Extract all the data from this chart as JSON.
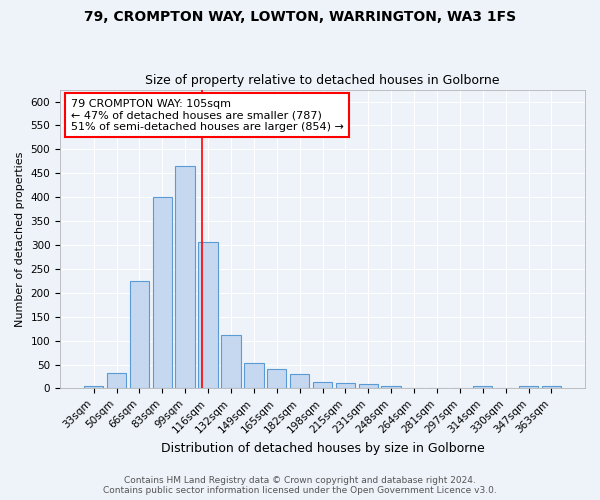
{
  "title": "79, CROMPTON WAY, LOWTON, WARRINGTON, WA3 1FS",
  "subtitle": "Size of property relative to detached houses in Golborne",
  "xlabel": "Distribution of detached houses by size in Golborne",
  "ylabel": "Number of detached properties",
  "bin_labels": [
    "33sqm",
    "50sqm",
    "66sqm",
    "83sqm",
    "99sqm",
    "116sqm",
    "132sqm",
    "149sqm",
    "165sqm",
    "182sqm",
    "198sqm",
    "215sqm",
    "231sqm",
    "248sqm",
    "264sqm",
    "281sqm",
    "297sqm",
    "314sqm",
    "330sqm",
    "347sqm",
    "363sqm"
  ],
  "bar_values": [
    5,
    32,
    225,
    400,
    465,
    307,
    111,
    53,
    40,
    30,
    14,
    11,
    10,
    5,
    0,
    0,
    0,
    5,
    0,
    5,
    5
  ],
  "bar_color": "#c5d8f0",
  "bar_edge_color": "#5b9bd5",
  "red_line_x": 4.72,
  "annotation_line1": "79 CROMPTON WAY: 105sqm",
  "annotation_line2": "← 47% of detached houses are smaller (787)",
  "annotation_line3": "51% of semi-detached houses are larger (854) →",
  "annotation_box_color": "white",
  "annotation_box_edge": "red",
  "ylim": [
    0,
    625
  ],
  "yticks": [
    0,
    50,
    100,
    150,
    200,
    250,
    300,
    350,
    400,
    450,
    500,
    550,
    600
  ],
  "footer1": "Contains HM Land Registry data © Crown copyright and database right 2024.",
  "footer2": "Contains public sector information licensed under the Open Government Licence v3.0.",
  "bg_color": "#eef2f9",
  "grid_color": "white",
  "title_fontsize": 10,
  "subtitle_fontsize": 9,
  "xlabel_fontsize": 9,
  "ylabel_fontsize": 8,
  "tick_fontsize": 7.5,
  "annotation_fontsize": 8,
  "footer_fontsize": 6.5
}
